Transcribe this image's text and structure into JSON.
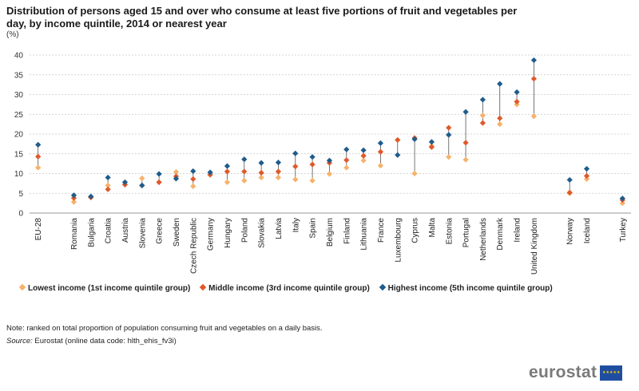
{
  "title": "Distribution of persons aged 15 and over who consume at least five portions of fruit and vegetables per day, by income quintile, 2014 or nearest year",
  "colors": {
    "lowest": "#f6b26b",
    "middle": "#e0592a",
    "highest": "#1f5c8b",
    "grid": "#c8c8c8",
    "line": "#555555"
  },
  "chart_data": {
    "type": "scatter",
    "title": "Distribution of persons aged 15 and over who consume at least five portions of fruit and vegetables per day, by income quintile, 2014 or nearest year",
    "ylabel": "(%)",
    "ylim": [
      0,
      40
    ],
    "yticks": [
      0,
      5,
      10,
      15,
      20,
      25,
      30,
      35,
      40
    ],
    "grid": true,
    "legend_position": "bottom",
    "categories": [
      "EU-28",
      "Romania",
      "Bulgaria",
      "Croatia",
      "Austria",
      "Slovenia",
      "Greece",
      "Sweden",
      "Czech Republic",
      "Germany",
      "Hungary",
      "Poland",
      "Slovakia",
      "Latvia",
      "Italy",
      "Spain",
      "Belgium",
      "Finland",
      "Lithuania",
      "France",
      "Luxembourg",
      "Cyprus",
      "Malta",
      "Estonia",
      "Portugal",
      "Netherlands",
      "Denmark",
      "Ireland",
      "United Kingdom",
      "Norway",
      "Iceland",
      "Turkey"
    ],
    "group_breaks_after": [
      "EU-28",
      "United Kingdom",
      "Iceland"
    ],
    "series": [
      {
        "name": "Lowest income (1st income quintile group)",
        "key": "lowest",
        "values": [
          11.5,
          2.8,
          3.9,
          7.0,
          7.2,
          8.8,
          7.8,
          10.4,
          6.8,
          9.7,
          7.8,
          8.2,
          9.0,
          9.0,
          8.5,
          8.2,
          9.9,
          11.5,
          13.3,
          12.0,
          18.5,
          10.0,
          17.0,
          14.2,
          13.5,
          24.7,
          22.5,
          27.5,
          24.5,
          5.0,
          8.6,
          2.5
        ]
      },
      {
        "name": "Middle income (3rd income quintile group)",
        "key": "middle",
        "values": [
          14.3,
          3.8,
          4.0,
          6.0,
          7.2,
          7.0,
          7.8,
          9.3,
          8.6,
          9.7,
          10.5,
          10.5,
          10.2,
          10.5,
          11.8,
          12.3,
          12.7,
          13.4,
          14.5,
          15.5,
          18.5,
          19.0,
          16.7,
          21.6,
          17.8,
          22.8,
          24.0,
          28.2,
          34.0,
          5.2,
          9.4,
          3.3
        ]
      },
      {
        "name": "Highest income (5th income quintile group)",
        "key": "highest",
        "values": [
          17.3,
          4.5,
          4.2,
          9.0,
          7.8,
          7.0,
          9.9,
          8.7,
          10.6,
          10.3,
          11.9,
          13.6,
          12.7,
          12.8,
          15.1,
          14.2,
          13.3,
          16.1,
          15.9,
          17.7,
          14.7,
          18.7,
          18.0,
          19.8,
          25.6,
          28.7,
          32.7,
          30.6,
          38.7,
          8.4,
          11.2,
          3.7
        ]
      }
    ]
  },
  "footer": {
    "note": "Note: ranked on total proportion of population consuming fruit and vegetables on a daily basis.",
    "source_label": "Source:",
    "source_text": "Eurostat (online data code: hlth_ehis_fv3i)",
    "logo_text": "eurostat"
  }
}
